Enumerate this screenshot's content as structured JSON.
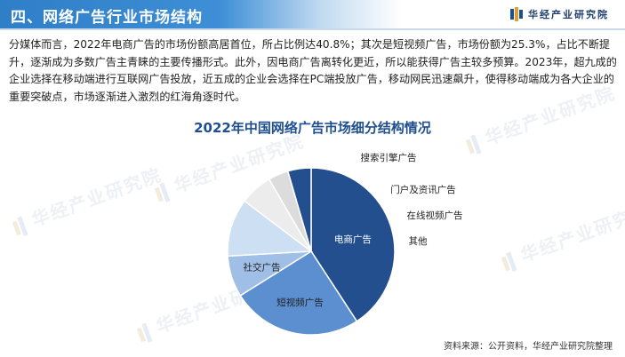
{
  "header": {
    "title": "四、网络广告行业市场结构",
    "brand": "华经产业研究院",
    "brand_color": "#1f3f6f",
    "bar_color": "#2f7ec8"
  },
  "body_text": "分媒体而言，2022年电商广告的市场份额高居首位，所占比例达40.8%；其次是短视频广告，市场份额为25.3%，占比不断提升，逐渐成为多数广告主青睐的主要传播形式。此外，因电商广告离转化更近，所以能获得广告主较多预算。2023年，超九成的企业选择在移动端进行互联网广告投放，近五成的企业会选择在PC端投放广告，移动网民迅速飙升，使得移动端成为各大企业的重要突破点，市场逐渐进入激烈的红海角逐时代。",
  "watermark": "华经产业研究院",
  "source": "资料来源：公开资料，华经产业研究院整理",
  "chart_data": {
    "type": "pie",
    "title": "2022年中国网络广告市场细分结构情况",
    "start_angle_deg": 0,
    "direction": "clockwise",
    "slices": [
      {
        "label": "电商广告",
        "value": 40.8,
        "color": "#234f8e",
        "label_color": "#ffffff",
        "label_inside": true
      },
      {
        "label": "短视频广告",
        "value": 25.3,
        "color": "#5b8fd0",
        "label_color": "#222222",
        "label_inside": true
      },
      {
        "label": "社交广告",
        "value": 8.0,
        "color": "#9fbfe6",
        "label_color": "#222222",
        "label_inside": true
      },
      {
        "label": "搜索引擎广告",
        "value": 11.2,
        "color": "#cddff3",
        "label_color": "#222222",
        "label_inside": false
      },
      {
        "label": "门户及资讯广告",
        "value": 6.3,
        "color": "#ececec",
        "label_color": "#222222",
        "label_inside": false
      },
      {
        "label": "在线视频广告",
        "value": 3.9,
        "color": "#dcdcdc",
        "label_color": "#222222",
        "label_inside": false
      },
      {
        "label": "其他",
        "value": 4.5,
        "color": "#234f8e",
        "label_color": "#222222",
        "label_inside": false
      }
    ]
  }
}
